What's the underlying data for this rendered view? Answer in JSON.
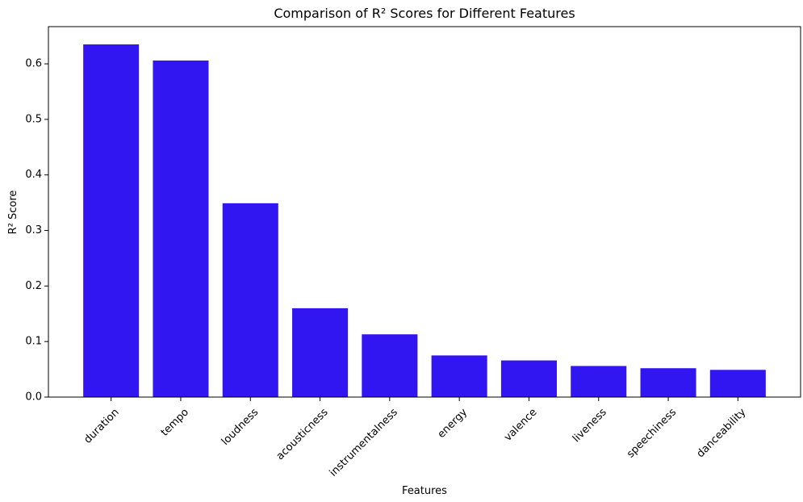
{
  "chart_data": {
    "type": "bar",
    "title": "Comparison of R² Scores for Different Features",
    "xlabel": "Features",
    "ylabel": "R² Score",
    "categories": [
      "duration",
      "tempo",
      "loudness",
      "acousticness",
      "instrumentalness",
      "energy",
      "valence",
      "liveness",
      "speechiness",
      "danceability"
    ],
    "values": [
      0.635,
      0.606,
      0.349,
      0.16,
      0.113,
      0.075,
      0.066,
      0.056,
      0.052,
      0.049
    ],
    "yticks": [
      "0.0",
      "0.1",
      "0.2",
      "0.3",
      "0.4",
      "0.5",
      "0.6"
    ],
    "ylim": [
      0,
      0.667
    ],
    "xtick_rotation": 45,
    "grid": false,
    "bar_color": "#3116f2"
  }
}
